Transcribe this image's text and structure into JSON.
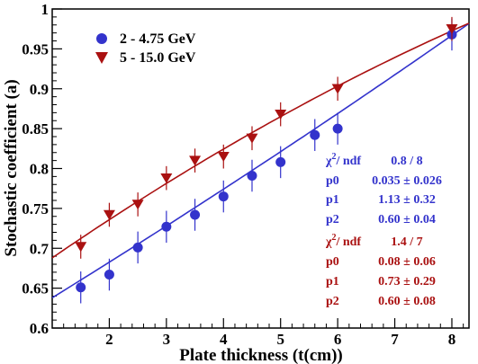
{
  "chart_data": {
    "type": "scatter",
    "xlabel": "Plate thickness (t(cm))",
    "ylabel": "Stochastic coefficient (a)",
    "xlim": [
      1.0,
      8.3
    ],
    "ylim": [
      0.6,
      1.0
    ],
    "x_ticks": [
      "2",
      "3",
      "4",
      "5",
      "6",
      "7",
      "8"
    ],
    "y_ticks": [
      "0.6",
      "0.65",
      "0.7",
      "0.75",
      "0.8",
      "0.85",
      "0.9",
      "0.95",
      "1"
    ],
    "x_tick_values": [
      2,
      3,
      4,
      5,
      6,
      7,
      8
    ],
    "y_tick_values": [
      0.6,
      0.65,
      0.7,
      0.75,
      0.8,
      0.85,
      0.9,
      0.95,
      1.0
    ],
    "legend_position": "top-left",
    "series": [
      {
        "name": "2 - 4.75 GeV",
        "color": "#3333cc",
        "marker": "circle",
        "x": [
          1.5,
          2.0,
          2.5,
          3.0,
          3.5,
          4.0,
          4.5,
          5.0,
          5.6,
          6.0,
          8.0
        ],
        "y": [
          0.651,
          0.667,
          0.701,
          0.727,
          0.742,
          0.765,
          0.791,
          0.808,
          0.842,
          0.85,
          0.968
        ],
        "err": [
          0.02,
          0.02,
          0.02,
          0.02,
          0.02,
          0.02,
          0.02,
          0.02,
          0.02,
          0.02,
          0.02
        ],
        "fit": {
          "chi2_label": "χ",
          "chi2_sup": "2",
          "chi2_rest": "/ ndf",
          "chi2_value": "0.8 / 8",
          "params": [
            {
              "name": "p0",
              "value": "0.035 ± 0.026"
            },
            {
              "name": "p1",
              "value": "1.13 ± 0.32"
            },
            {
              "name": "p2",
              "value": "0.60 ± 0.04"
            }
          ]
        }
      },
      {
        "name": "5 - 15.0 GeV",
        "color": "#aa1111",
        "marker": "triangle-down",
        "x": [
          1.5,
          2.0,
          2.5,
          3.0,
          3.5,
          4.0,
          4.5,
          5.0,
          6.0,
          8.0
        ],
        "y": [
          0.702,
          0.742,
          0.755,
          0.788,
          0.81,
          0.815,
          0.838,
          0.868,
          0.9,
          0.975
        ],
        "err": [
          0.015,
          0.015,
          0.015,
          0.015,
          0.015,
          0.015,
          0.015,
          0.015,
          0.015,
          0.015
        ],
        "fit": {
          "chi2_label": "χ",
          "chi2_sup": "2",
          "chi2_rest": "/ ndf",
          "chi2_value": "1.4 / 7",
          "params": [
            {
              "name": "p0",
              "value": "0.08 ± 0.06"
            },
            {
              "name": "p1",
              "value": "0.73 ± 0.29"
            },
            {
              "name": "p2",
              "value": "0.60 ± 0.08"
            }
          ]
        }
      }
    ]
  }
}
